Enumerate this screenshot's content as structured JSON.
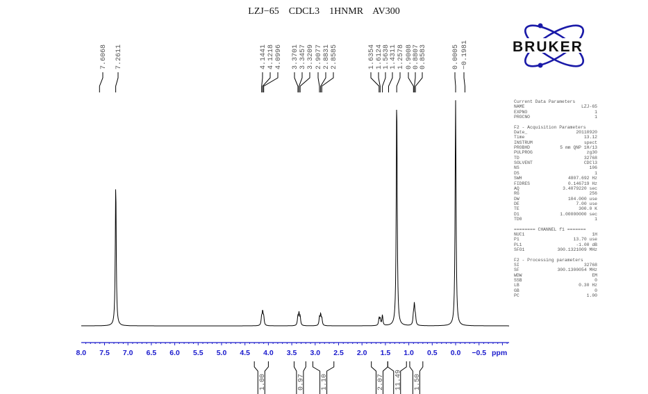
{
  "title": "LZJ−65    CDCL3    1HNMR    AV300",
  "logo_text": "BRUKER",
  "colors": {
    "axis": "#1a1acc",
    "spectrum": "#000000",
    "logo_ring": "#1a1aa8",
    "labels": "#555555"
  },
  "chart_data": {
    "type": "line",
    "title": "LZJ−65    CDCL3    1HNMR    AV300",
    "xlabel": "ppm",
    "xlim": [
      8.1,
      -1.15
    ],
    "x_reversed": true,
    "grid": false,
    "xticks": [
      "8.0",
      "7.5",
      "7.0",
      "6.5",
      "6.0",
      "5.5",
      "5.0",
      "4.5",
      "4.0",
      "3.5",
      "3.0",
      "2.5",
      "2.0",
      "1.5",
      "1.0",
      "0.5",
      "0.0",
      "−0.5"
    ],
    "xtick_values": [
      8.0,
      7.5,
      7.0,
      6.5,
      6.0,
      5.5,
      5.0,
      4.5,
      4.0,
      3.5,
      3.0,
      2.5,
      2.0,
      1.5,
      1.0,
      0.5,
      0.0,
      -0.5
    ],
    "peak_labels": [
      "7.6068",
      "7.2611",
      "4.1441",
      "4.1218",
      "4.0996",
      "3.3701",
      "3.3457",
      "3.3209",
      "2.9077",
      "2.8831",
      "2.8585",
      "1.6354",
      "1.6124",
      "1.5638",
      "1.4311",
      "1.2578",
      "0.9008",
      "0.8807",
      "0.8583",
      "0.0005",
      "−0.1981"
    ],
    "peak_ppm": [
      7.6068,
      7.2611,
      4.1441,
      4.1218,
      4.0996,
      3.3701,
      3.3457,
      3.3209,
      2.9077,
      2.8831,
      2.8585,
      1.6354,
      1.6124,
      1.5638,
      1.4311,
      1.2578,
      0.9008,
      0.8807,
      0.8583,
      0.0005,
      -0.1981
    ],
    "spectrum_peaks": [
      {
        "ppm": 7.26,
        "height": 0.62
      },
      {
        "ppm": 4.144,
        "height": 0.035
      },
      {
        "ppm": 4.122,
        "height": 0.055
      },
      {
        "ppm": 4.1,
        "height": 0.035
      },
      {
        "ppm": 3.37,
        "height": 0.035
      },
      {
        "ppm": 3.346,
        "height": 0.05
      },
      {
        "ppm": 3.321,
        "height": 0.035
      },
      {
        "ppm": 2.908,
        "height": 0.033
      },
      {
        "ppm": 2.883,
        "height": 0.045
      },
      {
        "ppm": 2.858,
        "height": 0.03
      },
      {
        "ppm": 1.635,
        "height": 0.03
      },
      {
        "ppm": 1.612,
        "height": 0.028
      },
      {
        "ppm": 1.564,
        "height": 0.045
      },
      {
        "ppm": 1.258,
        "height": 1.0
      },
      {
        "ppm": 0.901,
        "height": 0.04
      },
      {
        "ppm": 0.881,
        "height": 0.085
      },
      {
        "ppm": 0.858,
        "height": 0.035
      },
      {
        "ppm": 0.0005,
        "height": 0.98
      }
    ],
    "integrals": [
      {
        "from": 4.3,
        "to": 4.0,
        "value": "1.00"
      },
      {
        "from": 3.45,
        "to": 3.2,
        "value": "0.97"
      },
      {
        "from": 3.05,
        "to": 2.6,
        "value": "1.10"
      },
      {
        "from": 1.8,
        "to": 1.45,
        "value": "2.07"
      },
      {
        "from": 1.45,
        "to": 1.05,
        "value": "11.49"
      },
      {
        "from": 0.98,
        "to": 0.7,
        "value": "1.50"
      }
    ]
  },
  "params": [
    {
      "head": "Current Data Parameters"
    },
    {
      "k": "NAME",
      "v": "LZJ-65"
    },
    {
      "k": "EXPNO",
      "v": "1"
    },
    {
      "k": "PROCNO",
      "v": "1"
    },
    {
      "gap": true
    },
    {
      "head": "F2 - Acquisition Parameters"
    },
    {
      "k": "Date_",
      "v": "20110920"
    },
    {
      "k": "Time",
      "v": "13.12"
    },
    {
      "k": "INSTRUM",
      "v": "spect"
    },
    {
      "k": "PROBHD",
      "v": "5 mm QNP 1H/13"
    },
    {
      "k": "PULPROG",
      "v": "zg30"
    },
    {
      "k": "TD",
      "v": "32768"
    },
    {
      "k": "SOLVENT",
      "v": "CDCl3"
    },
    {
      "k": "NS",
      "v": "106"
    },
    {
      "k": "DS",
      "v": "1"
    },
    {
      "k": "SWH",
      "v": "4807.692 Hz"
    },
    {
      "k": "FIDRES",
      "v": "0.146719 Hz"
    },
    {
      "k": "AQ",
      "v": "3.4079220 sec"
    },
    {
      "k": "RG",
      "v": "256"
    },
    {
      "k": "DW",
      "v": "104.000 use"
    },
    {
      "k": "DE",
      "v": "7.00 use"
    },
    {
      "k": "TE",
      "v": "300.0 K"
    },
    {
      "k": "D1",
      "v": "1.00000000 sec"
    },
    {
      "k": "TD0",
      "v": "1"
    },
    {
      "gap": true
    },
    {
      "head": "======== CHANNEL f1 ======="
    },
    {
      "k": "NUC1",
      "v": "1H"
    },
    {
      "k": "P1",
      "v": "13.70 use"
    },
    {
      "k": "PL1",
      "v": "-1.00 dB"
    },
    {
      "k": "SFO1",
      "v": "300.1321009 MHz"
    },
    {
      "gap": true
    },
    {
      "head": "F2 - Processing parameters"
    },
    {
      "k": "SI",
      "v": "32768"
    },
    {
      "k": "SF",
      "v": "300.1300054 MHz"
    },
    {
      "k": "WDW",
      "v": "EM"
    },
    {
      "k": "SSB",
      "v": "0"
    },
    {
      "k": "LB",
      "v": "0.30 Hz"
    },
    {
      "k": "GB",
      "v": "0"
    },
    {
      "k": "PC",
      "v": "1.00"
    }
  ]
}
